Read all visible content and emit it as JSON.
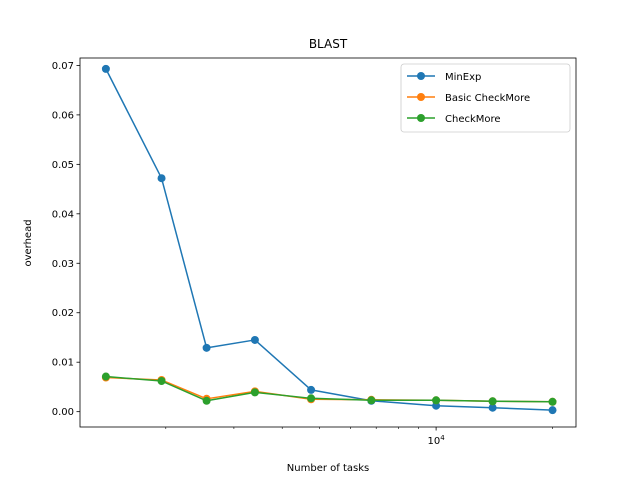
{
  "chart_data": {
    "type": "line",
    "title": "BLAST",
    "xlabel": "Number of tasks",
    "ylabel": "overhead",
    "xscale": "log",
    "xlim": [
      1200,
      23000
    ],
    "ylim": [
      -0.0031,
      0.0715
    ],
    "x": [
      1400,
      1950,
      2550,
      3400,
      4750,
      6800,
      10000,
      14000,
      20000
    ],
    "x_ticks": [
      {
        "value": 10000,
        "label": "10^4"
      }
    ],
    "y_ticks": [
      {
        "value": 0.0,
        "label": "0.00"
      },
      {
        "value": 0.01,
        "label": "0.01"
      },
      {
        "value": 0.02,
        "label": "0.02"
      },
      {
        "value": 0.03,
        "label": "0.03"
      },
      {
        "value": 0.04,
        "label": "0.04"
      },
      {
        "value": 0.05,
        "label": "0.05"
      },
      {
        "value": 0.06,
        "label": "0.06"
      },
      {
        "value": 0.07,
        "label": "0.07"
      }
    ],
    "series": [
      {
        "name": "MinExp",
        "color": "#1f77b4",
        "values": [
          0.0693,
          0.0472,
          0.0129,
          0.0145,
          0.0044,
          0.0022,
          0.0012,
          0.0008,
          0.0003
        ]
      },
      {
        "name": "Basic CheckMore",
        "color": "#ff7f0e",
        "values": [
          0.0069,
          0.0064,
          0.0026,
          0.0041,
          0.0025,
          0.0024,
          0.0023,
          0.0021,
          0.002
        ]
      },
      {
        "name": "CheckMore",
        "color": "#2ca02c",
        "values": [
          0.0071,
          0.0062,
          0.0022,
          0.0039,
          0.0027,
          0.0023,
          0.0023,
          0.0021,
          0.002
        ]
      }
    ],
    "legend_position": "top-right",
    "grid": false
  }
}
